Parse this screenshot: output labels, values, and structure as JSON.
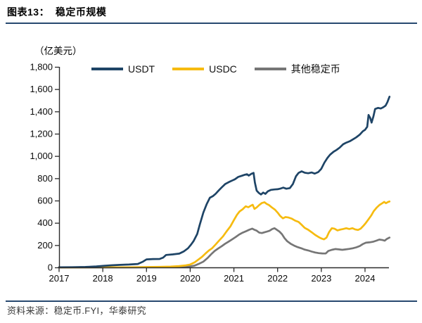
{
  "header": {
    "title": "图表13：  稳定币规模"
  },
  "footer": {
    "source": "资料来源：稳定币.FYI，华泰研究"
  },
  "colors": {
    "rule": "#27496F",
    "axis": "#2b2b2b",
    "text": "#000000"
  },
  "chart_data": {
    "type": "line",
    "title": "稳定币规模",
    "unit_label": "（亿美元）",
    "xlabel": "",
    "ylabel": "（亿美元）",
    "grid": false,
    "legend_position": "top",
    "x_range": [
      2017,
      2024.56
    ],
    "y_range": [
      0,
      1800
    ],
    "y_ticks": [
      0,
      200,
      400,
      600,
      800,
      1000,
      1200,
      1400,
      1600,
      1800
    ],
    "y_tick_labels": [
      "0",
      "200",
      "400",
      "600",
      "800",
      "1,000",
      "1,200",
      "1,400",
      "1,600",
      "1,800"
    ],
    "x_tick_labels": [
      "2017",
      "2018",
      "2019",
      "2020",
      "2021",
      "2022",
      "2023",
      "2024"
    ],
    "series": [
      {
        "name": "USDT",
        "color": "#1E4466",
        "points": [
          [
            2017.0,
            1
          ],
          [
            2017.3,
            2
          ],
          [
            2017.6,
            4
          ],
          [
            2017.85,
            9
          ],
          [
            2018.0,
            13
          ],
          [
            2018.2,
            19
          ],
          [
            2018.4,
            23
          ],
          [
            2018.6,
            26
          ],
          [
            2018.8,
            31
          ],
          [
            2018.92,
            52
          ],
          [
            2019.0,
            72
          ],
          [
            2019.15,
            75
          ],
          [
            2019.3,
            76
          ],
          [
            2019.38,
            88
          ],
          [
            2019.45,
            112
          ],
          [
            2019.6,
            117
          ],
          [
            2019.75,
            124
          ],
          [
            2019.85,
            143
          ],
          [
            2019.95,
            172
          ],
          [
            2020.02,
            205
          ],
          [
            2020.08,
            238
          ],
          [
            2020.16,
            300
          ],
          [
            2020.22,
            385
          ],
          [
            2020.3,
            492
          ],
          [
            2020.38,
            570
          ],
          [
            2020.45,
            625
          ],
          [
            2020.52,
            640
          ],
          [
            2020.58,
            660
          ],
          [
            2020.65,
            690
          ],
          [
            2020.72,
            718
          ],
          [
            2020.8,
            748
          ],
          [
            2020.88,
            765
          ],
          [
            2020.95,
            778
          ],
          [
            2021.02,
            790
          ],
          [
            2021.1,
            812
          ],
          [
            2021.18,
            822
          ],
          [
            2021.25,
            832
          ],
          [
            2021.3,
            836
          ],
          [
            2021.34,
            824
          ],
          [
            2021.4,
            840
          ],
          [
            2021.45,
            848
          ],
          [
            2021.48,
            762
          ],
          [
            2021.52,
            690
          ],
          [
            2021.57,
            668
          ],
          [
            2021.62,
            654
          ],
          [
            2021.67,
            672
          ],
          [
            2021.72,
            660
          ],
          [
            2021.78,
            684
          ],
          [
            2021.85,
            696
          ],
          [
            2021.93,
            700
          ],
          [
            2022.0,
            702
          ],
          [
            2022.07,
            708
          ],
          [
            2022.13,
            716
          ],
          [
            2022.2,
            706
          ],
          [
            2022.28,
            712
          ],
          [
            2022.35,
            748
          ],
          [
            2022.42,
            818
          ],
          [
            2022.48,
            848
          ],
          [
            2022.55,
            862
          ],
          [
            2022.62,
            850
          ],
          [
            2022.7,
            845
          ],
          [
            2022.78,
            852
          ],
          [
            2022.85,
            842
          ],
          [
            2022.93,
            856
          ],
          [
            2023.0,
            885
          ],
          [
            2023.07,
            940
          ],
          [
            2023.14,
            982
          ],
          [
            2023.2,
            1012
          ],
          [
            2023.28,
            1038
          ],
          [
            2023.35,
            1055
          ],
          [
            2023.42,
            1075
          ],
          [
            2023.5,
            1105
          ],
          [
            2023.57,
            1120
          ],
          [
            2023.65,
            1132
          ],
          [
            2023.72,
            1148
          ],
          [
            2023.8,
            1168
          ],
          [
            2023.88,
            1192
          ],
          [
            2023.95,
            1222
          ],
          [
            2024.0,
            1235
          ],
          [
            2024.05,
            1262
          ],
          [
            2024.08,
            1368
          ],
          [
            2024.12,
            1342
          ],
          [
            2024.15,
            1300
          ],
          [
            2024.19,
            1352
          ],
          [
            2024.23,
            1422
          ],
          [
            2024.3,
            1432
          ],
          [
            2024.36,
            1426
          ],
          [
            2024.42,
            1438
          ],
          [
            2024.47,
            1452
          ],
          [
            2024.51,
            1482
          ],
          [
            2024.56,
            1532
          ]
        ]
      },
      {
        "name": "USDC",
        "color": "#F6BB10",
        "points": [
          [
            2017.0,
            0
          ],
          [
            2018.0,
            1
          ],
          [
            2018.5,
            1
          ],
          [
            2018.83,
            2
          ],
          [
            2019.0,
            3
          ],
          [
            2019.3,
            5
          ],
          [
            2019.55,
            7
          ],
          [
            2019.75,
            12
          ],
          [
            2019.9,
            18
          ],
          [
            2020.0,
            26
          ],
          [
            2020.1,
            45
          ],
          [
            2020.18,
            68
          ],
          [
            2020.27,
            95
          ],
          [
            2020.35,
            125
          ],
          [
            2020.43,
            152
          ],
          [
            2020.5,
            172
          ],
          [
            2020.58,
            205
          ],
          [
            2020.66,
            240
          ],
          [
            2020.75,
            278
          ],
          [
            2020.83,
            322
          ],
          [
            2020.92,
            368
          ],
          [
            2021.0,
            425
          ],
          [
            2021.07,
            472
          ],
          [
            2021.13,
            502
          ],
          [
            2021.2,
            522
          ],
          [
            2021.27,
            548
          ],
          [
            2021.33,
            540
          ],
          [
            2021.38,
            552
          ],
          [
            2021.43,
            562
          ],
          [
            2021.47,
            525
          ],
          [
            2021.52,
            538
          ],
          [
            2021.58,
            560
          ],
          [
            2021.64,
            578
          ],
          [
            2021.7,
            585
          ],
          [
            2021.75,
            570
          ],
          [
            2021.8,
            560
          ],
          [
            2021.87,
            538
          ],
          [
            2021.94,
            518
          ],
          [
            2022.0,
            492
          ],
          [
            2022.06,
            462
          ],
          [
            2022.12,
            440
          ],
          [
            2022.18,
            452
          ],
          [
            2022.25,
            448
          ],
          [
            2022.32,
            438
          ],
          [
            2022.4,
            420
          ],
          [
            2022.48,
            408
          ],
          [
            2022.55,
            382
          ],
          [
            2022.62,
            355
          ],
          [
            2022.7,
            338
          ],
          [
            2022.78,
            315
          ],
          [
            2022.86,
            292
          ],
          [
            2022.94,
            272
          ],
          [
            2023.0,
            260
          ],
          [
            2023.06,
            252
          ],
          [
            2023.12,
            268
          ],
          [
            2023.18,
            318
          ],
          [
            2023.24,
            352
          ],
          [
            2023.3,
            348
          ],
          [
            2023.37,
            332
          ],
          [
            2023.44,
            340
          ],
          [
            2023.5,
            345
          ],
          [
            2023.57,
            352
          ],
          [
            2023.64,
            345
          ],
          [
            2023.71,
            352
          ],
          [
            2023.77,
            342
          ],
          [
            2023.84,
            336
          ],
          [
            2023.9,
            348
          ],
          [
            2023.96,
            372
          ],
          [
            2024.02,
            400
          ],
          [
            2024.08,
            432
          ],
          [
            2024.14,
            465
          ],
          [
            2024.2,
            505
          ],
          [
            2024.27,
            538
          ],
          [
            2024.33,
            560
          ],
          [
            2024.39,
            575
          ],
          [
            2024.44,
            588
          ],
          [
            2024.48,
            576
          ],
          [
            2024.52,
            586
          ],
          [
            2024.56,
            592
          ]
        ]
      },
      {
        "name": "其他稳定币",
        "color": "#767676",
        "points": [
          [
            2017.0,
            0
          ],
          [
            2018.5,
            1
          ],
          [
            2019.0,
            2
          ],
          [
            2019.5,
            3
          ],
          [
            2019.8,
            5
          ],
          [
            2020.0,
            9
          ],
          [
            2020.1,
            16
          ],
          [
            2020.2,
            32
          ],
          [
            2020.3,
            52
          ],
          [
            2020.4,
            85
          ],
          [
            2020.48,
            118
          ],
          [
            2020.56,
            148
          ],
          [
            2020.64,
            170
          ],
          [
            2020.72,
            190
          ],
          [
            2020.8,
            212
          ],
          [
            2020.88,
            232
          ],
          [
            2020.96,
            252
          ],
          [
            2021.04,
            272
          ],
          [
            2021.12,
            295
          ],
          [
            2021.2,
            312
          ],
          [
            2021.28,
            325
          ],
          [
            2021.35,
            338
          ],
          [
            2021.42,
            348
          ],
          [
            2021.46,
            340
          ],
          [
            2021.52,
            330
          ],
          [
            2021.58,
            312
          ],
          [
            2021.64,
            308
          ],
          [
            2021.7,
            315
          ],
          [
            2021.76,
            322
          ],
          [
            2021.82,
            330
          ],
          [
            2021.88,
            345
          ],
          [
            2021.93,
            352
          ],
          [
            2021.98,
            338
          ],
          [
            2022.04,
            322
          ],
          [
            2022.1,
            298
          ],
          [
            2022.16,
            262
          ],
          [
            2022.22,
            235
          ],
          [
            2022.3,
            212
          ],
          [
            2022.38,
            195
          ],
          [
            2022.46,
            182
          ],
          [
            2022.54,
            172
          ],
          [
            2022.62,
            160
          ],
          [
            2022.7,
            152
          ],
          [
            2022.78,
            142
          ],
          [
            2022.86,
            134
          ],
          [
            2022.94,
            128
          ],
          [
            2023.02,
            126
          ],
          [
            2023.1,
            125
          ],
          [
            2023.16,
            148
          ],
          [
            2023.24,
            158
          ],
          [
            2023.32,
            165
          ],
          [
            2023.4,
            162
          ],
          [
            2023.48,
            158
          ],
          [
            2023.56,
            162
          ],
          [
            2023.64,
            166
          ],
          [
            2023.72,
            172
          ],
          [
            2023.8,
            180
          ],
          [
            2023.88,
            192
          ],
          [
            2023.95,
            210
          ],
          [
            2024.02,
            222
          ],
          [
            2024.1,
            225
          ],
          [
            2024.18,
            230
          ],
          [
            2024.26,
            240
          ],
          [
            2024.33,
            250
          ],
          [
            2024.4,
            246
          ],
          [
            2024.45,
            240
          ],
          [
            2024.5,
            255
          ],
          [
            2024.56,
            268
          ]
        ]
      }
    ]
  }
}
